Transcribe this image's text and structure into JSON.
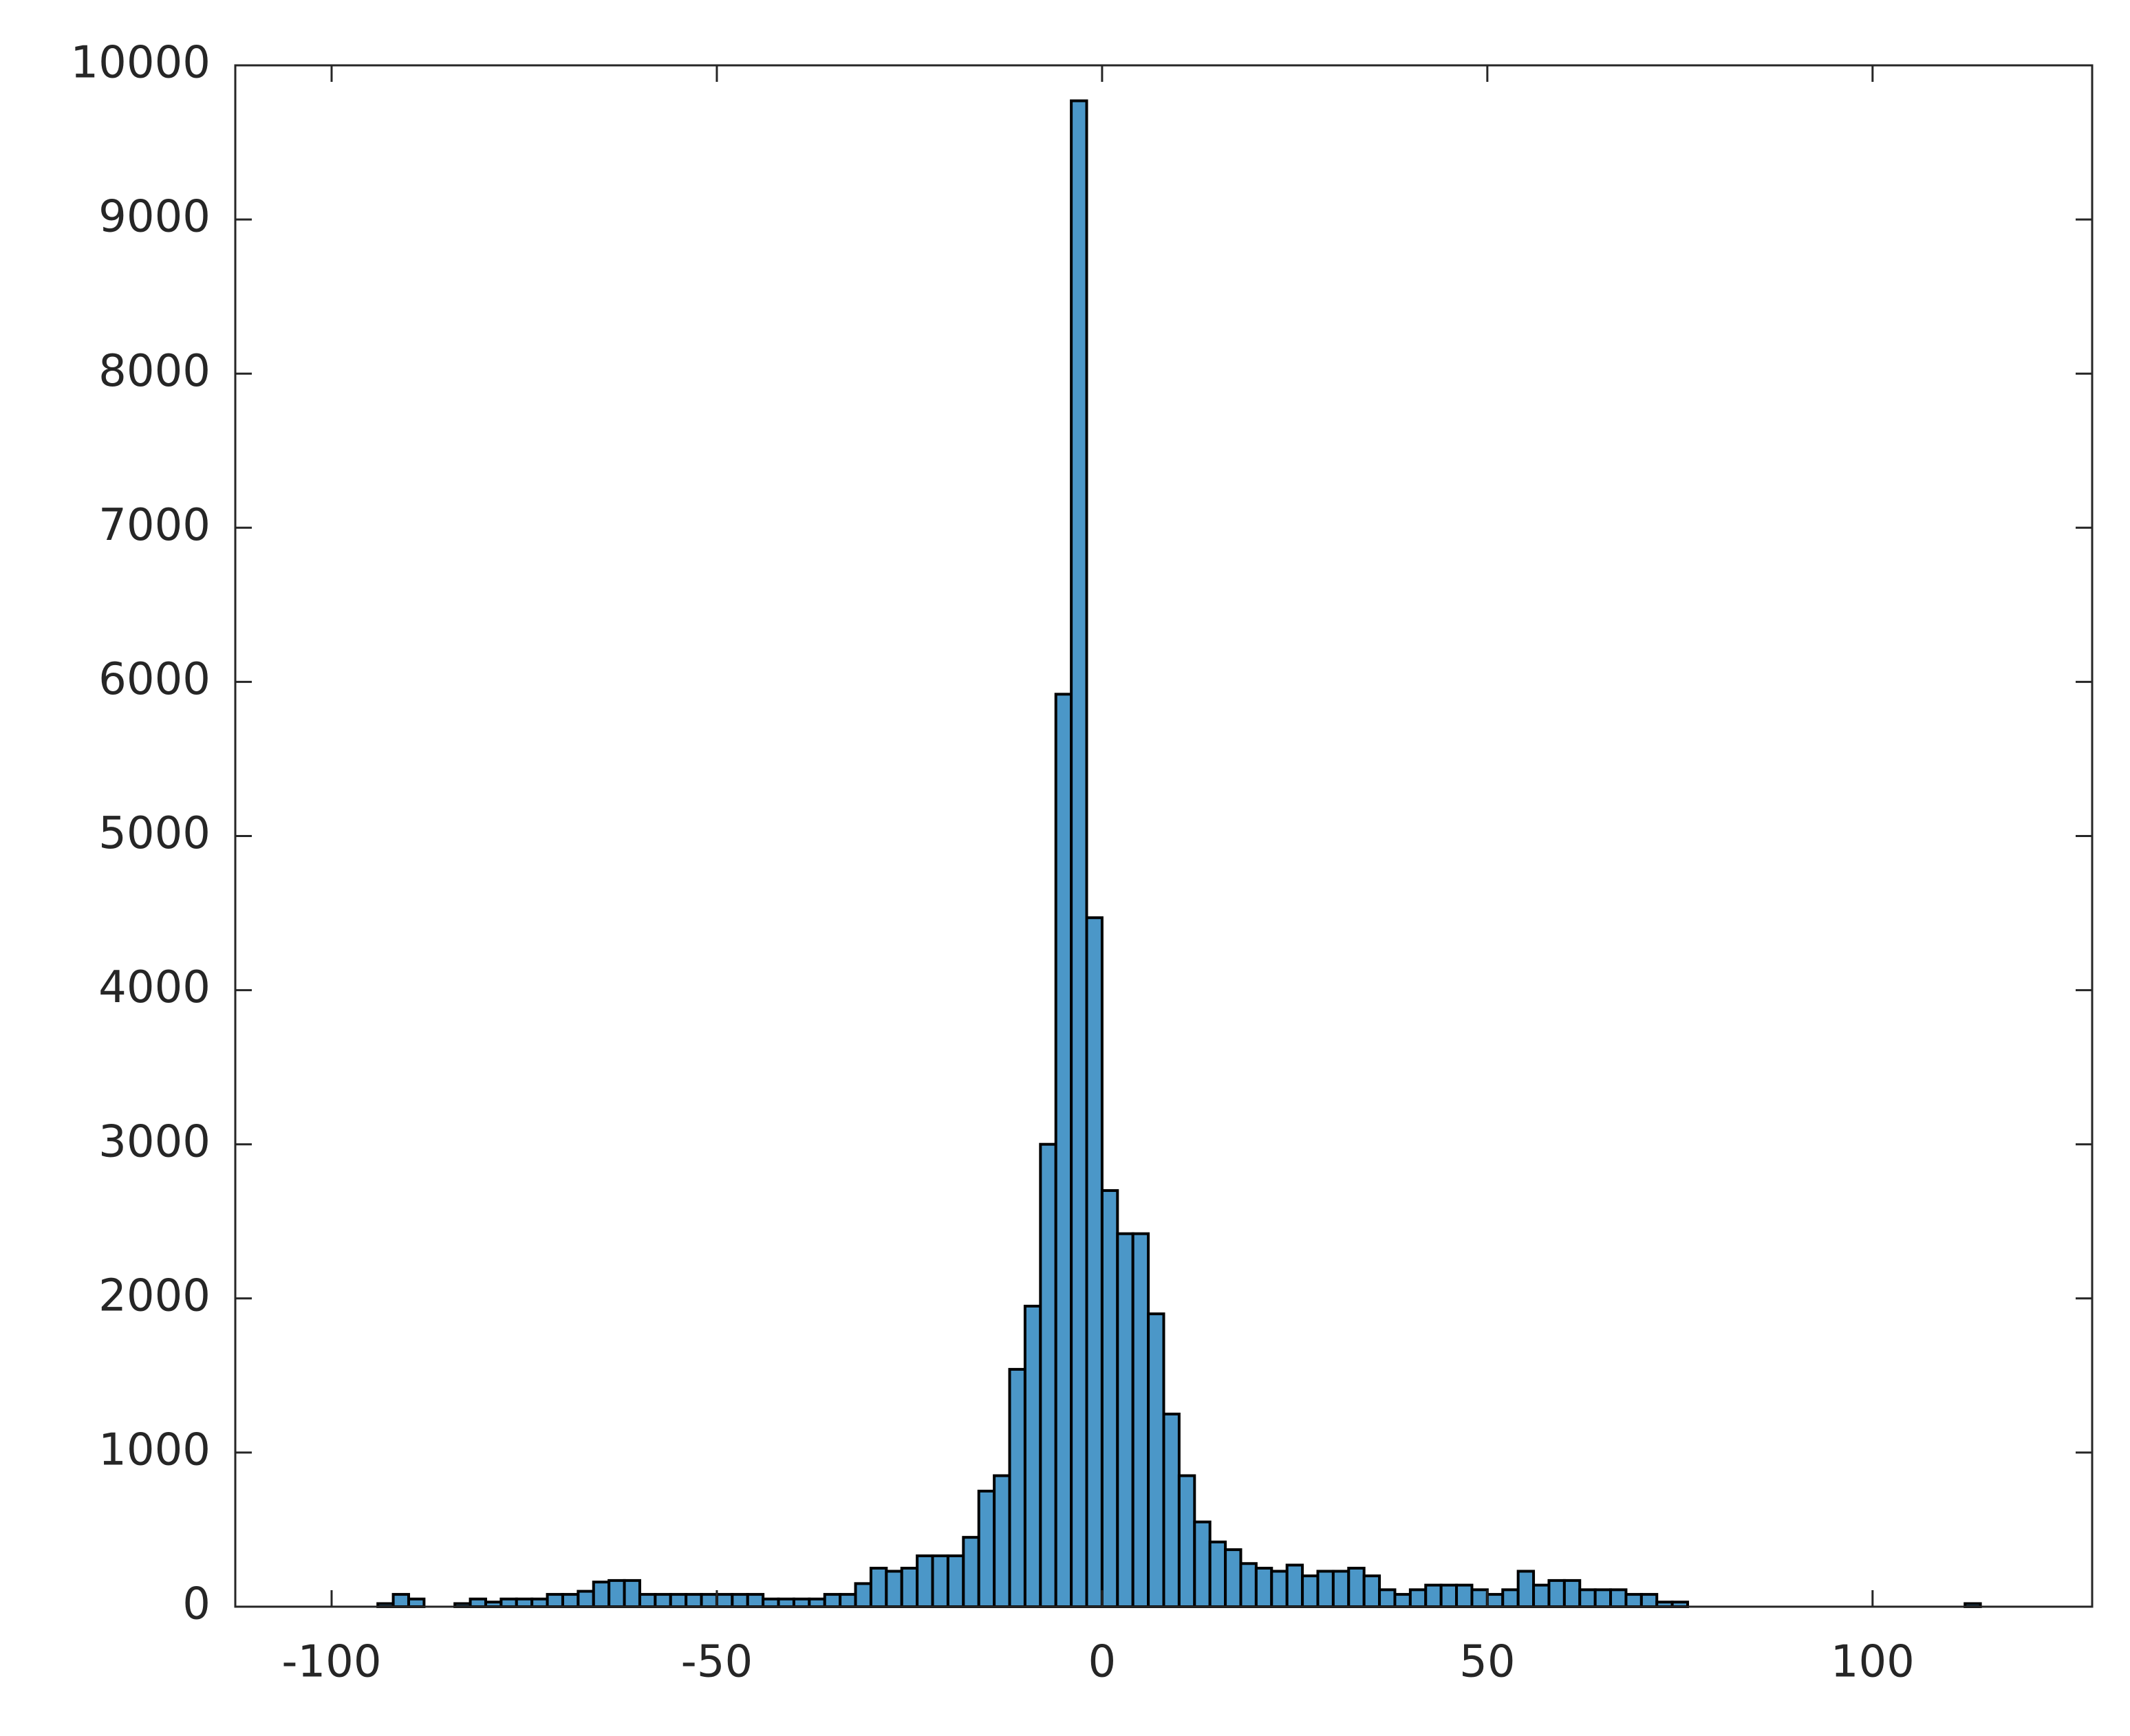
{
  "chart_data": {
    "type": "histogram",
    "bins": [
      -94,
      -92,
      -90,
      -88,
      -86,
      -84,
      -82,
      -80,
      -78,
      -76,
      -74,
      -72,
      -70,
      -68,
      -66,
      -64,
      -62,
      -60,
      -58,
      -56,
      -54,
      -52,
      -50,
      -48,
      -46,
      -44,
      -42,
      -40,
      -38,
      -36,
      -34,
      -32,
      -30,
      -28,
      -26,
      -24,
      -22,
      -20,
      -18,
      -16,
      -14,
      -12,
      -10,
      -8,
      -6,
      -4,
      -2,
      0,
      2,
      4,
      6,
      8,
      10,
      12,
      14,
      16,
      18,
      20,
      22,
      24,
      26,
      28,
      30,
      32,
      34,
      36,
      38,
      40,
      42,
      44,
      46,
      48,
      50,
      52,
      54,
      56,
      58,
      60,
      62,
      64,
      66,
      68,
      70,
      72,
      74,
      76,
      78,
      80,
      82,
      84,
      86,
      88,
      90,
      92,
      94,
      96,
      98,
      100,
      102,
      104,
      106,
      108,
      110,
      112,
      114
    ],
    "values": [
      20,
      80,
      50,
      0,
      0,
      20,
      50,
      30,
      50,
      50,
      50,
      80,
      80,
      100,
      160,
      170,
      170,
      80,
      80,
      80,
      80,
      80,
      80,
      80,
      80,
      50,
      50,
      50,
      50,
      80,
      80,
      150,
      250,
      230,
      250,
      330,
      330,
      330,
      450,
      750,
      850,
      1540,
      1950,
      3000,
      5920,
      9770,
      4470,
      2700,
      2420,
      2420,
      1900,
      1250,
      850,
      550,
      420,
      370,
      280,
      250,
      230,
      270,
      200,
      230,
      230,
      250,
      200,
      110,
      80,
      110,
      140,
      140,
      140,
      110,
      80,
      110,
      230,
      140,
      170,
      170,
      110,
      110,
      110,
      80,
      80,
      30,
      30,
      0,
      0,
      0,
      0,
      0,
      0,
      0,
      0,
      0,
      0,
      0,
      0,
      0,
      0,
      0,
      0,
      0,
      0,
      20
    ],
    "color": "#4b97c8",
    "xlim": [
      -112.5,
      128.5
    ],
    "xticks": [
      -100,
      -50,
      0,
      50,
      100
    ],
    "ylim": [
      0,
      10000
    ],
    "yticks": [
      0,
      1000,
      2000,
      3000,
      4000,
      5000,
      6000,
      7000,
      8000,
      9000,
      10000
    ],
    "grid": false
  }
}
